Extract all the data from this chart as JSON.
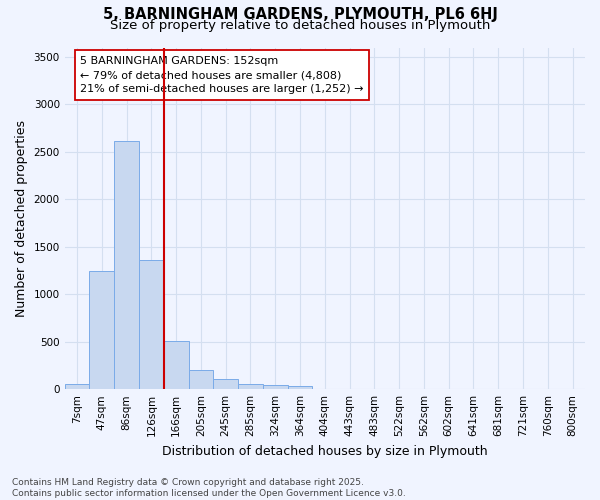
{
  "title_line1": "5, BARNINGHAM GARDENS, PLYMOUTH, PL6 6HJ",
  "title_line2": "Size of property relative to detached houses in Plymouth",
  "xlabel": "Distribution of detached houses by size in Plymouth",
  "ylabel": "Number of detached properties",
  "categories": [
    "7sqm",
    "47sqm",
    "86sqm",
    "126sqm",
    "166sqm",
    "205sqm",
    "245sqm",
    "285sqm",
    "324sqm",
    "364sqm",
    "404sqm",
    "443sqm",
    "483sqm",
    "522sqm",
    "562sqm",
    "602sqm",
    "641sqm",
    "681sqm",
    "721sqm",
    "760sqm",
    "800sqm"
  ],
  "values": [
    55,
    1250,
    2610,
    1360,
    505,
    205,
    110,
    55,
    45,
    35,
    0,
    0,
    0,
    0,
    0,
    0,
    0,
    0,
    0,
    0,
    0
  ],
  "bar_color": "#c8d8f0",
  "bar_edge_color": "#7aabe8",
  "ylim": [
    0,
    3600
  ],
  "yticks": [
    0,
    500,
    1000,
    1500,
    2000,
    2500,
    3000,
    3500
  ],
  "vline_color": "#cc0000",
  "vline_pos": 3.5,
  "annotation_text": "5 BARNINGHAM GARDENS: 152sqm\n← 79% of detached houses are smaller (4,808)\n21% of semi-detached houses are larger (1,252) →",
  "annotation_box_color": "#ffffff",
  "annotation_box_edge": "#cc0000",
  "footer_text": "Contains HM Land Registry data © Crown copyright and database right 2025.\nContains public sector information licensed under the Open Government Licence v3.0.",
  "bg_color": "#f0f4ff",
  "grid_color": "#d4dff0",
  "title_fontsize": 10.5,
  "subtitle_fontsize": 9.5,
  "axis_label_fontsize": 9,
  "tick_fontsize": 7.5,
  "annot_fontsize": 8,
  "footer_fontsize": 6.5
}
